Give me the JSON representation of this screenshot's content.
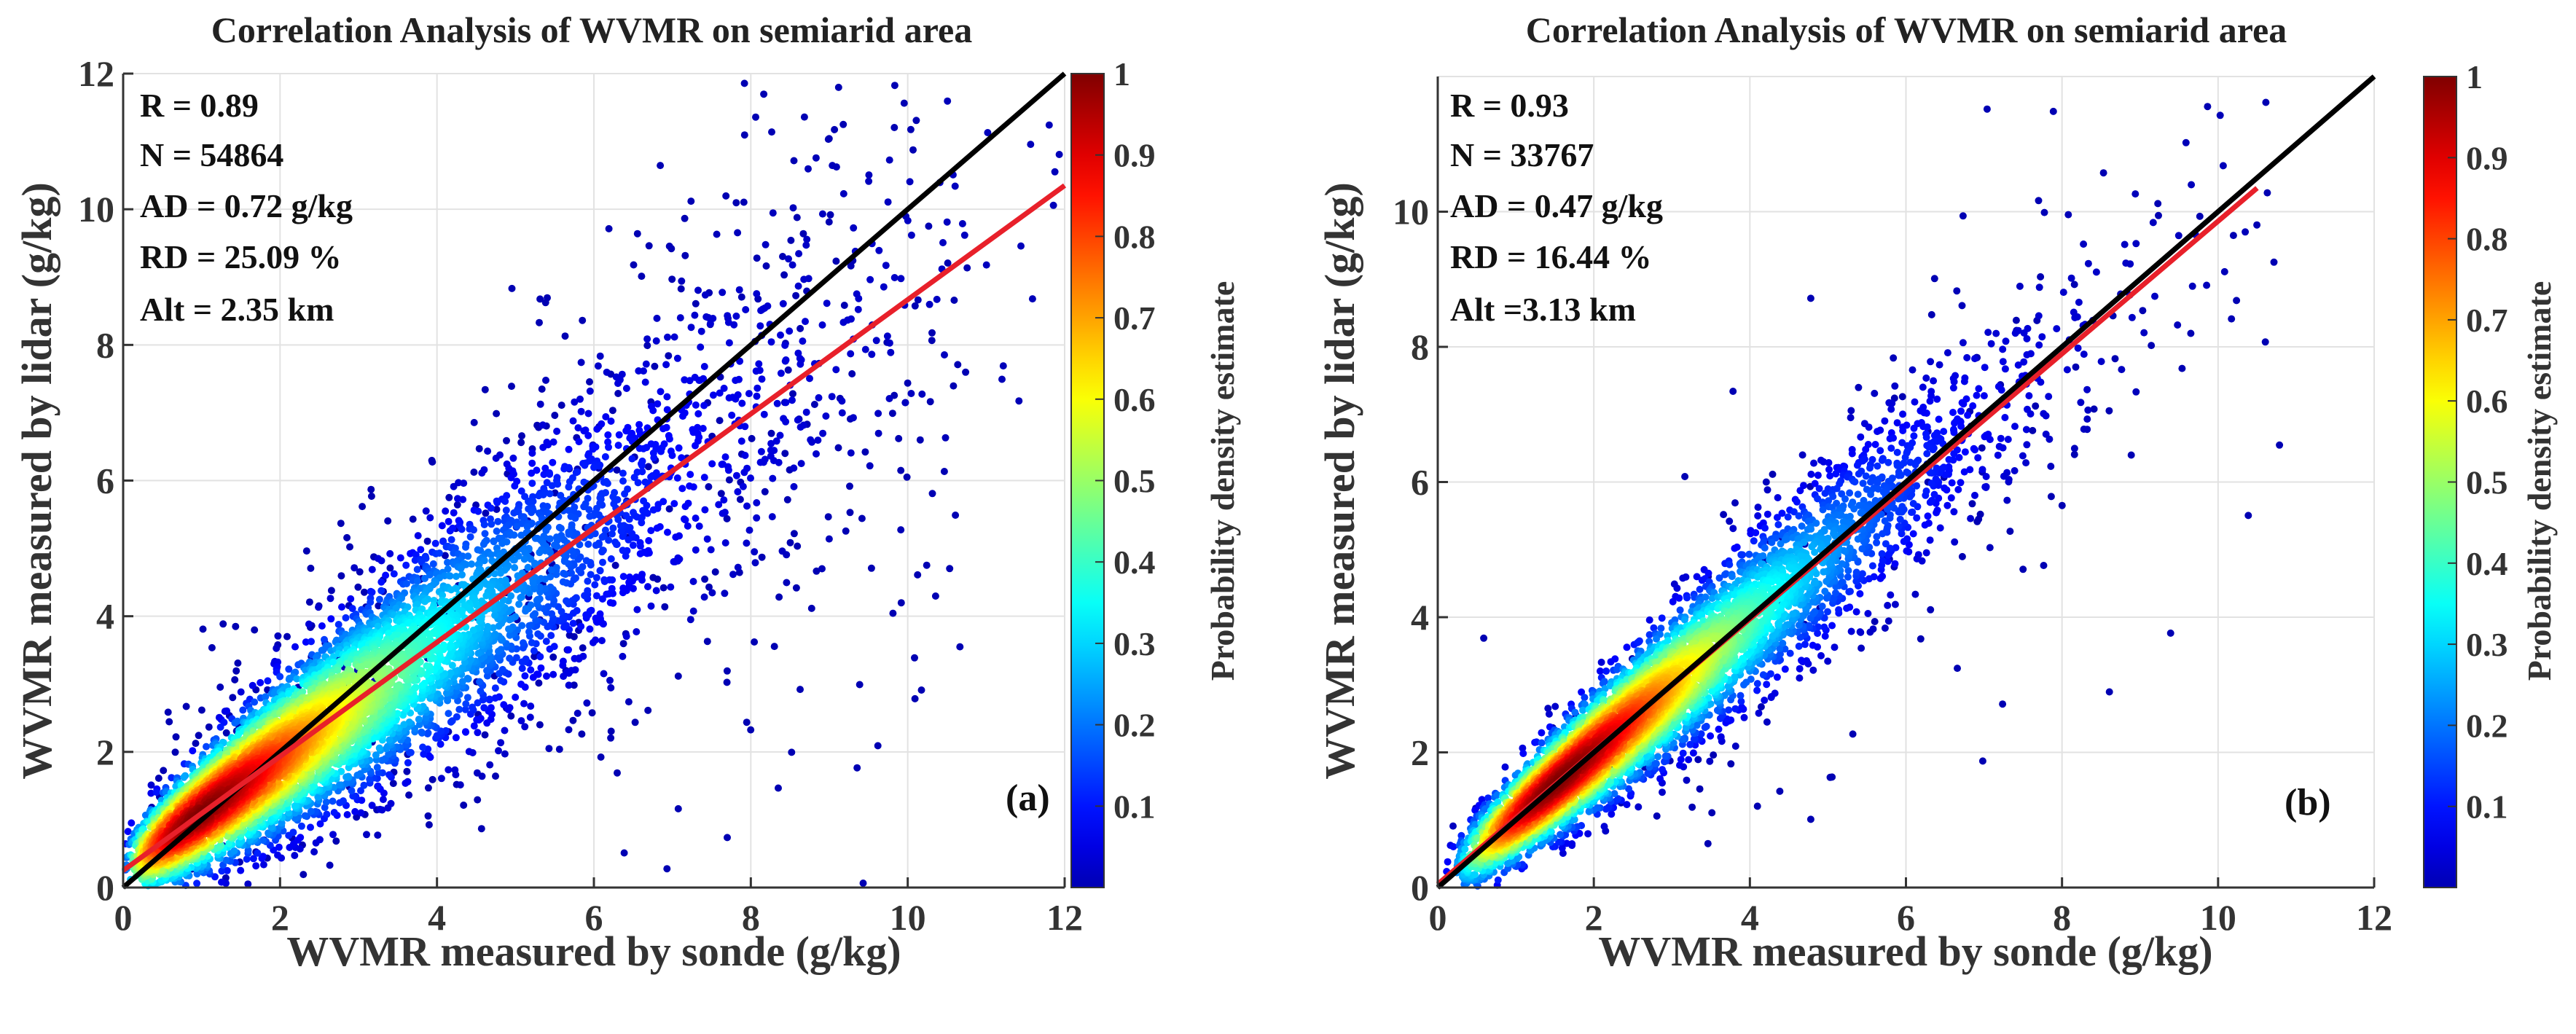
{
  "chart_data": [
    {
      "type": "scatter",
      "title": "Correlation Analysis of WVMR on semiarid area",
      "xlabel": "WVMR measured by sonde  (g/kg)",
      "ylabel": "WVMR measured by lidar  (g/kg)",
      "xlim": [
        0,
        12
      ],
      "ylim": [
        0,
        12
      ],
      "xticks": [
        "0",
        "2",
        "4",
        "6",
        "8",
        "10",
        "12"
      ],
      "yticks": [
        "0",
        "2",
        "4",
        "6",
        "8",
        "10",
        "12"
      ],
      "grid": true,
      "panel_label": "(a)",
      "annotations": [
        "R = 0.89",
        "N = 54864",
        "AD = 0.72 g/kg",
        "RD = 25.09 %",
        "Alt = 2.35 km"
      ],
      "color_mapping": "probability density estimate (jet colormap)",
      "density_peak": [
        1.7,
        1.5
      ],
      "lines": [
        {
          "role": "1:1 line",
          "color": "#000000",
          "x": [
            0,
            12
          ],
          "y": [
            0,
            12
          ]
        },
        {
          "role": "fit line",
          "color": "#e8202a",
          "x": [
            0,
            12
          ],
          "y": [
            0.25,
            10.35
          ]
        }
      ],
      "colorbar": {
        "label": "Probability density estimate",
        "ticks": [
          "0.1",
          "0.2",
          "0.3",
          "0.4",
          "0.5",
          "0.6",
          "0.7",
          "0.8",
          "0.9",
          "1"
        ],
        "range": [
          0,
          1
        ]
      }
    },
    {
      "type": "scatter",
      "title": "Correlation Analysis of WVMR on semiarid area",
      "xlabel": "WVMR measured by sonde  (g/kg)",
      "ylabel": "WVMR measured by lidar  (g/kg)",
      "xlim": [
        0,
        12
      ],
      "ylim": [
        0,
        12
      ],
      "xticks": [
        "0",
        "2",
        "4",
        "6",
        "8",
        "10",
        "12"
      ],
      "yticks": [
        "0",
        "2",
        "4",
        "6",
        "8",
        "10"
      ],
      "grid": true,
      "panel_label": "(b)",
      "annotations": [
        "R = 0.93",
        "N = 33767",
        "AD = 0.47 g/kg",
        "RD = 16.44 %",
        "Alt =3.13 km"
      ],
      "color_mapping": "probability density estimate (jet colormap)",
      "density_peak": [
        2.2,
        2.1
      ],
      "lines": [
        {
          "role": "1:1 line",
          "color": "#000000",
          "x": [
            0,
            12
          ],
          "y": [
            0,
            12
          ]
        },
        {
          "role": "fit line",
          "color": "#e8202a",
          "x": [
            0,
            10.5
          ],
          "y": [
            0.05,
            10.35
          ]
        }
      ],
      "colorbar": {
        "label": "Probability density estimate",
        "ticks": [
          "0.1",
          "0.2",
          "0.3",
          "0.4",
          "0.5",
          "0.6",
          "0.7",
          "0.8",
          "0.9",
          "1"
        ],
        "range": [
          0,
          1
        ]
      }
    }
  ]
}
